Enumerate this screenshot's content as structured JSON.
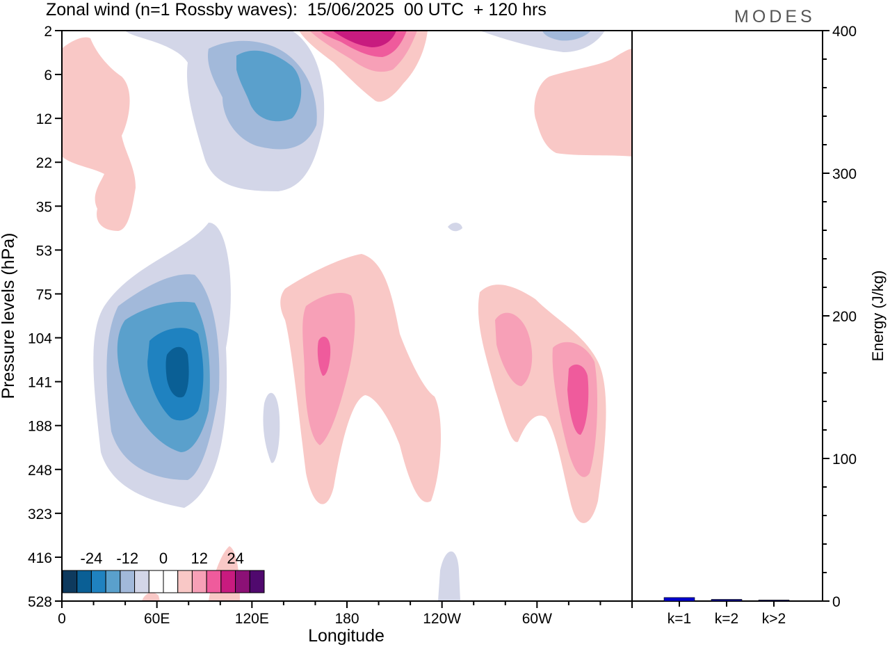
{
  "header": {
    "title": "Zonal wind (n=1 Rossby waves):  15/06/2025  00 UTC  + 120 hrs",
    "brand": "MODES"
  },
  "chart_data": [
    {
      "type": "heatmap",
      "xlabel": "Longitude",
      "ylabel": "Pressure levels (hPa)",
      "x_ticks": [
        "0",
        "60E",
        "120E",
        "180",
        "120W",
        "60W"
      ],
      "y_ticks": [
        "2",
        "6",
        "12",
        "22",
        "35",
        "53",
        "75",
        "104",
        "141",
        "188",
        "248",
        "323",
        "416",
        "528"
      ],
      "xlim_deg": [
        0,
        360
      ],
      "colorbar": {
        "labels": [
          "-24",
          "-12",
          "0",
          "12",
          "24"
        ],
        "colors": [
          "#0e3a5e",
          "#0a5f95",
          "#1f82c0",
          "#5aa0cc",
          "#a2b9da",
          "#d3d6e8",
          "#ffffff",
          "#ffffff",
          "#f9c8c6",
          "#f7a0b7",
          "#ef5b9c",
          "#c81b7f",
          "#8c1176",
          "#50096e"
        ]
      },
      "regions": [
        {
          "level": 2,
          "color": "#a2b9da",
          "lon": 66,
          "lev_index": 7.8,
          "note": ""
        },
        {
          "level": -1,
          "color": "#f7a0b7",
          "lon": 165,
          "lev_index": 7.5
        },
        {
          "level": -1,
          "color": "#f7a0b7",
          "lon": 292,
          "lev_index": 8.5
        }
      ],
      "colors": {
        "neg_light": "#d3d6e8",
        "pos_light": "#f9c8c6"
      }
    },
    {
      "type": "bar",
      "categories": [
        "k=1",
        "k=2",
        "k>2"
      ],
      "values": [
        2.5,
        1.2,
        0.6
      ],
      "ylabel": "Energy (J/kg)",
      "ylim": [
        0,
        400
      ],
      "y_ticks": [
        "0",
        "100",
        "200",
        "300",
        "400"
      ],
      "colors": [
        "#0000cc",
        "#000080",
        "#000044"
      ]
    }
  ]
}
